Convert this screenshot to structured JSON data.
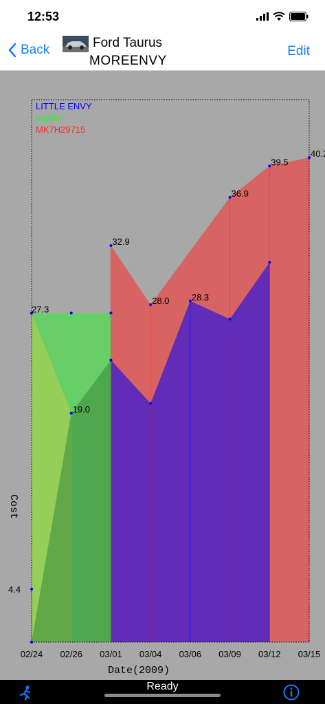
{
  "status": {
    "time": "12:53"
  },
  "nav": {
    "back_label": "Back",
    "edit_label": "Edit",
    "title_line1": "Ford Taurus",
    "title_line2": "MOREENVY"
  },
  "bottom": {
    "status_text": "Ready"
  },
  "colors": {
    "series_little_envy": "#0000ff",
    "series_pqr987": "#33ee33",
    "series_mk7h29715": "#ff2a2a",
    "chart_background": "#a8a8a8",
    "accent": "#147efb"
  },
  "icons": [
    "chevron-left-icon",
    "runner-icon",
    "info-icon",
    "wifi-icon",
    "battery-icon",
    "signal-icon"
  ],
  "chart_data": {
    "type": "area",
    "xlabel": "Date(2009)",
    "ylabel": "Cost",
    "categories": [
      "02/24",
      "02/26",
      "03/01",
      "03/04",
      "03/06",
      "03/09",
      "03/12",
      "03/15"
    ],
    "ylim": [
      0,
      45
    ],
    "series": [
      {
        "name": "LITTLE ENVY",
        "color": "#0000ff",
        "values": [
          null,
          null,
          23.4,
          19.8,
          28.3,
          26.8,
          31.5,
          null
        ]
      },
      {
        "name": "pqr987",
        "color": "#33ee33",
        "values": [
          27.3,
          27.3,
          27.3,
          null,
          null,
          null,
          null,
          null
        ]
      },
      {
        "name": "MK7H29715",
        "color": "#ff2a2a",
        "values": [
          null,
          null,
          32.9,
          28.0,
          null,
          36.9,
          39.5,
          40.2
        ]
      },
      {
        "name": "",
        "color": "#cccc44",
        "values": [
          27.3,
          19.0,
          null,
          null,
          null,
          null,
          null,
          null
        ]
      },
      {
        "name": "",
        "color": "#3d8f3d",
        "values": [
          0,
          19.0,
          23.4,
          null,
          null,
          null,
          null,
          null
        ]
      },
      {
        "name": "",
        "color": "#3d8f3d",
        "values": [
          4.4,
          null,
          null,
          null,
          null,
          null,
          null,
          null
        ]
      }
    ],
    "point_labels": [
      {
        "x": "02/24",
        "y": 27.3,
        "text": "27.3"
      },
      {
        "x": "02/26",
        "y": 19.0,
        "text": "19.0"
      },
      {
        "x": "03/01",
        "y": 32.9,
        "text": "32.9"
      },
      {
        "x": "03/04",
        "y": 28.0,
        "text": "28.0"
      },
      {
        "x": "03/06",
        "y": 28.3,
        "text": "28.3"
      },
      {
        "x": "03/09",
        "y": 36.9,
        "text": "36.9"
      },
      {
        "x": "03/12",
        "y": 39.5,
        "text": "39.5"
      },
      {
        "x": "03/15",
        "y": 40.2,
        "text": "40.2"
      }
    ],
    "y_tick_labels": [
      {
        "y": 4.4,
        "text": "4.4"
      }
    ],
    "legend_position": "top-left",
    "grid": false
  }
}
